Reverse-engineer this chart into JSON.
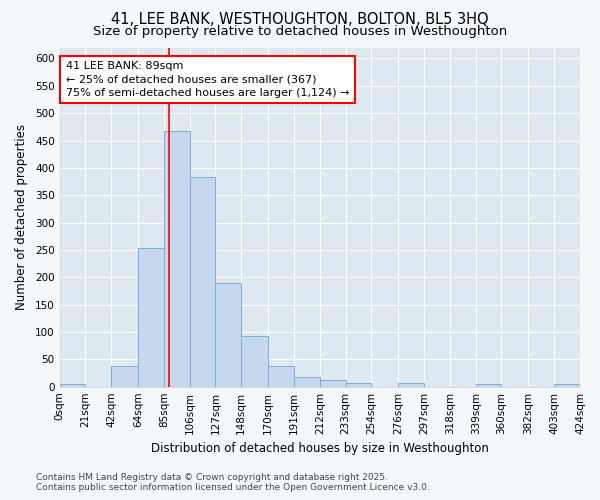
{
  "title_line1": "41, LEE BANK, WESTHOUGHTON, BOLTON, BL5 3HQ",
  "title_line2": "Size of property relative to detached houses in Westhoughton",
  "xlabel": "Distribution of detached houses by size in Westhoughton",
  "ylabel": "Number of detached properties",
  "bin_edges": [
    0,
    21,
    42,
    64,
    85,
    106,
    127,
    148,
    170,
    191,
    212,
    233,
    254,
    276,
    297,
    318,
    339,
    360,
    382,
    403,
    424
  ],
  "bin_labels": [
    "0sqm",
    "21sqm",
    "42sqm",
    "64sqm",
    "85sqm",
    "106sqm",
    "127sqm",
    "148sqm",
    "170sqm",
    "191sqm",
    "212sqm",
    "233sqm",
    "254sqm",
    "276sqm",
    "297sqm",
    "318sqm",
    "339sqm",
    "360sqm",
    "382sqm",
    "403sqm",
    "424sqm"
  ],
  "counts": [
    5,
    0,
    37,
    253,
    468,
    384,
    190,
    93,
    37,
    18,
    12,
    6,
    0,
    6,
    0,
    0,
    5,
    0,
    0,
    5
  ],
  "bar_color": "#c5d8ed",
  "bar_edge_color": "#7bafd4",
  "plot_bg_color": "#dde8f0",
  "fig_bg_color": "#f5f8fb",
  "grid_color": "#ffffff",
  "vline_x": 89,
  "vline_color": "red",
  "annotation_text": "41 LEE BANK: 89sqm\n← 25% of detached houses are smaller (367)\n75% of semi-detached houses are larger (1,124) →",
  "annotation_box_color": "white",
  "annotation_box_edge": "red",
  "ylim": [
    0,
    620
  ],
  "yticks": [
    0,
    50,
    100,
    150,
    200,
    250,
    300,
    350,
    400,
    450,
    500,
    550,
    600
  ],
  "footnote": "Contains HM Land Registry data © Crown copyright and database right 2025.\nContains public sector information licensed under the Open Government Licence v3.0.",
  "title_fontsize": 10.5,
  "subtitle_fontsize": 9.5,
  "ann_fontsize": 8,
  "tick_fontsize": 7.5,
  "label_fontsize": 8.5,
  "footnote_fontsize": 6.5
}
